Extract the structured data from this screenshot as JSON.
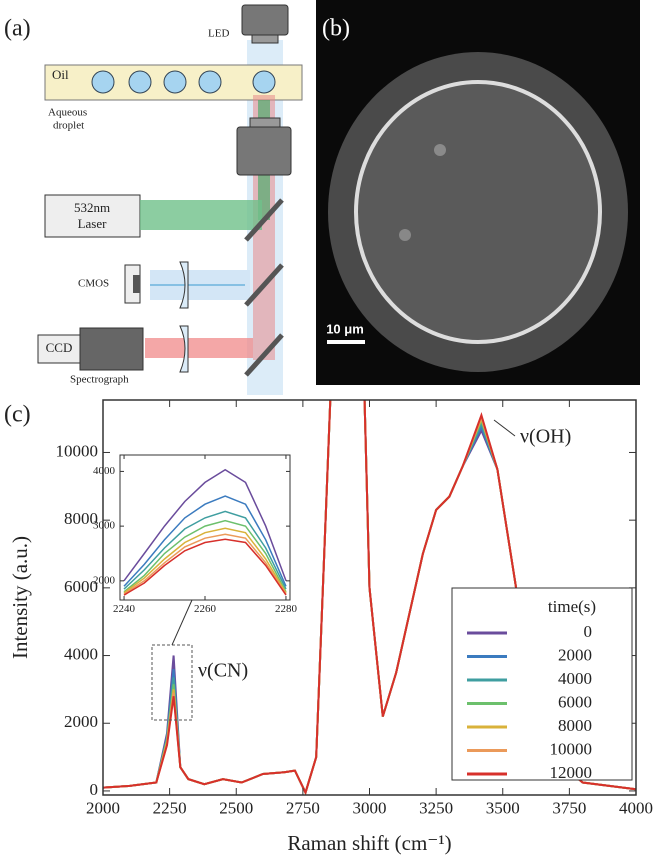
{
  "panels": {
    "a": "(a)",
    "b": "(b)",
    "c": "(c)"
  },
  "diagram": {
    "led": "LED",
    "oil": "Oil",
    "droplet_1": "Aqueous",
    "droplet_2": "droplet",
    "laser_1": "532nm",
    "laser_2": "Laser",
    "cmos": "CMOS",
    "ccd": "CCD",
    "spectrograph": "Spectrograph"
  },
  "image": {
    "scale_bar": "10 μm"
  },
  "chart_data": [
    {
      "type": "line",
      "xlabel": "Raman shift (cm⁻¹)",
      "ylabel": "Intensity (a.u.)",
      "annotations": [
        "ν(OH)",
        "ν(CN)"
      ],
      "xlim": [
        2000,
        4000
      ],
      "ylim": [
        -120,
        11550
      ],
      "xticks": [
        2000,
        2250,
        2500,
        2750,
        3000,
        3250,
        3500,
        3750,
        4000
      ],
      "yticks": [
        0,
        2000,
        4000,
        6000,
        8000,
        10000
      ],
      "legend_title": "time(s)",
      "legend": "lower right",
      "x": [
        2000,
        2100,
        2200,
        2240,
        2265,
        2290,
        2320,
        2380,
        2450,
        2520,
        2600,
        2680,
        2720,
        2760,
        2800,
        2840,
        2870,
        2970,
        3000,
        3050,
        3100,
        3200,
        3250,
        3300,
        3350,
        3420,
        3480,
        3550,
        3620,
        3700,
        3800,
        4000
      ],
      "series": [
        {
          "name": "0",
          "color": "#6a4c9c",
          "values": [
            100,
            150,
            250,
            1700,
            4000,
            700,
            350,
            200,
            350,
            250,
            500,
            550,
            600,
            -50,
            1000,
            9000,
            15000,
            15000,
            6000,
            2200,
            3500,
            7000,
            8300,
            8700,
            9600,
            10650,
            9500,
            6000,
            3000,
            900,
            250,
            50
          ]
        },
        {
          "name": "2000",
          "color": "#3b7bbf",
          "values": [
            100,
            150,
            250,
            1600,
            3600,
            700,
            350,
            200,
            350,
            250,
            500,
            550,
            600,
            -50,
            1000,
            9000,
            15000,
            15000,
            6000,
            2200,
            3500,
            7000,
            8300,
            8700,
            9600,
            10750,
            9500,
            6000,
            3000,
            900,
            250,
            50
          ]
        },
        {
          "name": "4000",
          "color": "#3f9ea0",
          "values": [
            100,
            150,
            250,
            1550,
            3350,
            700,
            350,
            200,
            350,
            250,
            500,
            550,
            600,
            -50,
            1000,
            9000,
            15000,
            15000,
            6000,
            2200,
            3500,
            7000,
            8300,
            8700,
            9600,
            10850,
            9500,
            6000,
            3000,
            900,
            250,
            50
          ]
        },
        {
          "name": "6000",
          "color": "#6cc06c",
          "values": [
            100,
            150,
            250,
            1500,
            3150,
            700,
            350,
            200,
            350,
            250,
            500,
            550,
            600,
            -50,
            1000,
            9000,
            15000,
            15000,
            6000,
            2200,
            3500,
            7000,
            8300,
            8700,
            9600,
            10950,
            9500,
            6000,
            3000,
            900,
            250,
            50
          ]
        },
        {
          "name": "8000",
          "color": "#d9b23a",
          "values": [
            100,
            150,
            250,
            1450,
            3000,
            700,
            350,
            200,
            350,
            250,
            500,
            550,
            600,
            -50,
            1000,
            9000,
            15000,
            15000,
            6000,
            2200,
            3500,
            7000,
            8300,
            8700,
            9600,
            11000,
            9500,
            6000,
            3000,
            900,
            250,
            50
          ]
        },
        {
          "name": "10000",
          "color": "#eb9a5a",
          "values": [
            100,
            150,
            250,
            1400,
            2900,
            700,
            350,
            200,
            350,
            250,
            500,
            550,
            600,
            -50,
            1000,
            9000,
            15000,
            15000,
            6000,
            2200,
            3500,
            7000,
            8300,
            8700,
            9600,
            11050,
            9500,
            6000,
            3000,
            900,
            250,
            50
          ]
        },
        {
          "name": "12000",
          "color": "#d7302b",
          "values": [
            100,
            150,
            250,
            1350,
            2800,
            700,
            350,
            200,
            350,
            250,
            500,
            550,
            600,
            -50,
            1000,
            9000,
            15000,
            15000,
            6000,
            2200,
            3500,
            7000,
            8300,
            8700,
            9600,
            11100,
            9500,
            6000,
            3000,
            900,
            250,
            50
          ]
        }
      ]
    },
    {
      "type": "line",
      "xlim": [
        2239,
        2281
      ],
      "ylim": [
        1650,
        4300
      ],
      "xticks": [
        2240,
        2260,
        2280
      ],
      "yticks": [
        2000,
        3000,
        4000
      ],
      "x": [
        2240,
        2245,
        2250,
        2255,
        2260,
        2265,
        2270,
        2275,
        2280
      ],
      "series": [
        {
          "color": "#6a4c9c",
          "values": [
            2000,
            2500,
            3000,
            3450,
            3800,
            4030,
            3800,
            3000,
            2000
          ]
        },
        {
          "color": "#3b7bbf",
          "values": [
            1900,
            2300,
            2750,
            3150,
            3400,
            3550,
            3400,
            2750,
            1900
          ]
        },
        {
          "color": "#3f9ea0",
          "values": [
            1850,
            2200,
            2600,
            2950,
            3150,
            3270,
            3150,
            2600,
            1850
          ]
        },
        {
          "color": "#6cc06c",
          "values": [
            1800,
            2100,
            2500,
            2800,
            3000,
            3100,
            3000,
            2500,
            1800
          ]
        },
        {
          "color": "#d9b23a",
          "values": [
            1780,
            2050,
            2400,
            2700,
            2880,
            2960,
            2880,
            2400,
            1780
          ]
        },
        {
          "color": "#eb9a5a",
          "values": [
            1760,
            2000,
            2330,
            2620,
            2780,
            2850,
            2780,
            2330,
            1760
          ]
        },
        {
          "color": "#d7302b",
          "values": [
            1740,
            1960,
            2280,
            2550,
            2700,
            2760,
            2700,
            2280,
            1740
          ]
        }
      ]
    }
  ]
}
